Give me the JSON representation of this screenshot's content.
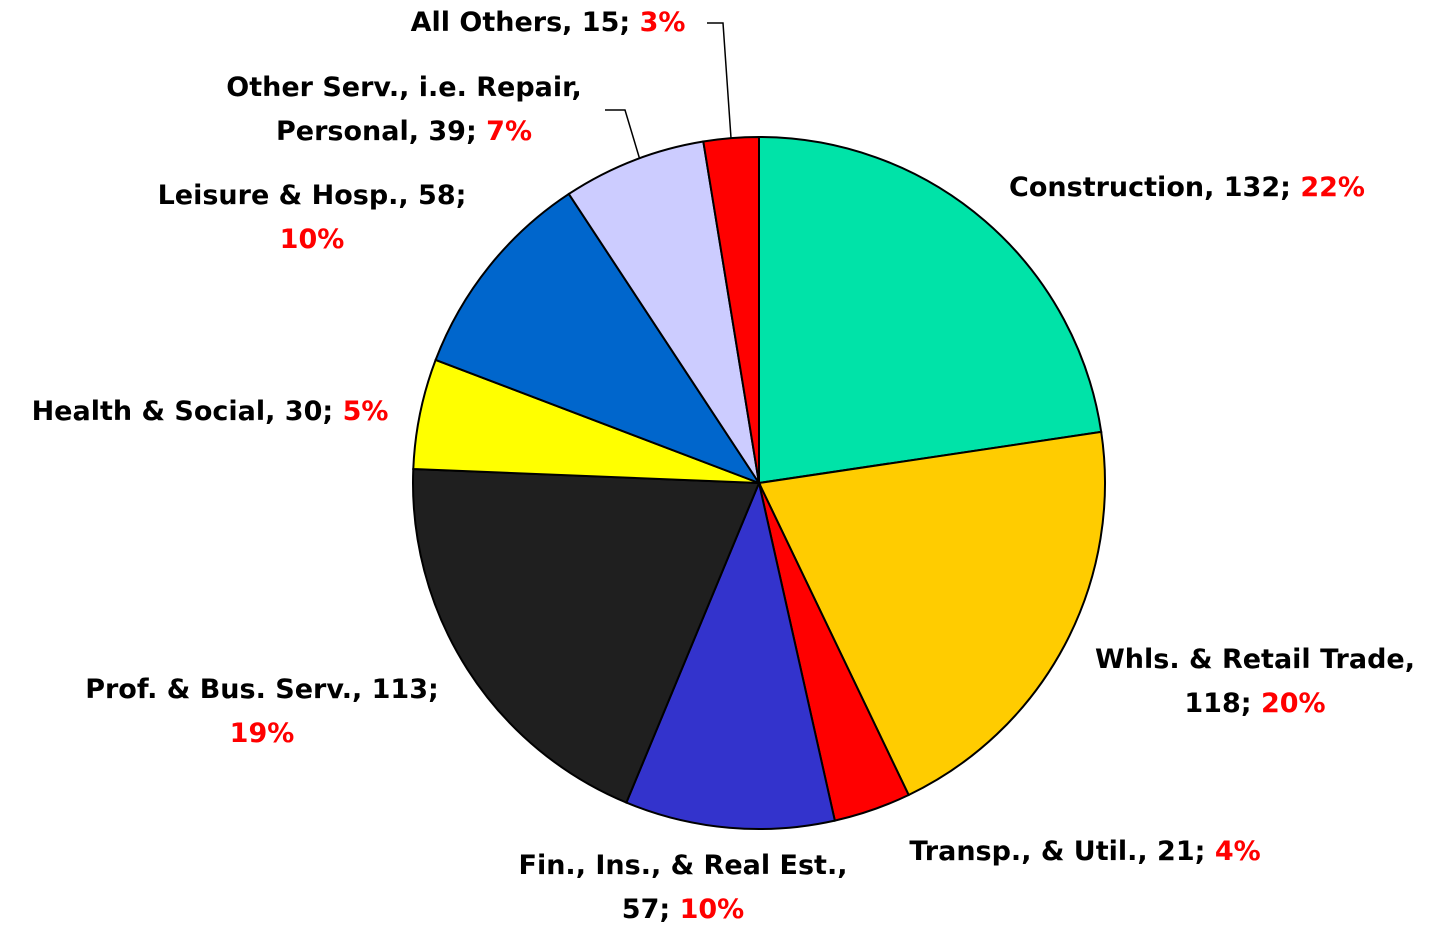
{
  "chart_data": {
    "type": "pie",
    "labels": [
      [
        "Construction, 132;"
      ],
      [
        "Whls. & Retail Trade,",
        "118;"
      ],
      [
        "Transp., & Util., 21;"
      ],
      [
        "Fin., Ins., & Real Est.,",
        "57;"
      ],
      [
        "Prof. & Bus. Serv., 113;",
        ""
      ],
      [
        "Health & Social, 30;"
      ],
      [
        "Leisure & Hosp., 58;",
        ""
      ],
      [
        "Other Serv., i.e. Repair,",
        "Personal, 39;"
      ],
      [
        "All Others, 15;"
      ]
    ],
    "values": [
      132,
      118,
      21,
      57,
      113,
      30,
      58,
      39,
      15
    ],
    "percent_labels": [
      "22%",
      "20%",
      "4%",
      "10%",
      "19%",
      "5%",
      "10%",
      "7%",
      "3%"
    ],
    "colors": [
      "#00e3a8",
      "#ffcc00",
      "#ff0000",
      "#3333cc",
      "#1f1f1f",
      "#ffff00",
      "#0066cc",
      "#ccccff",
      "#ff0000"
    ]
  }
}
